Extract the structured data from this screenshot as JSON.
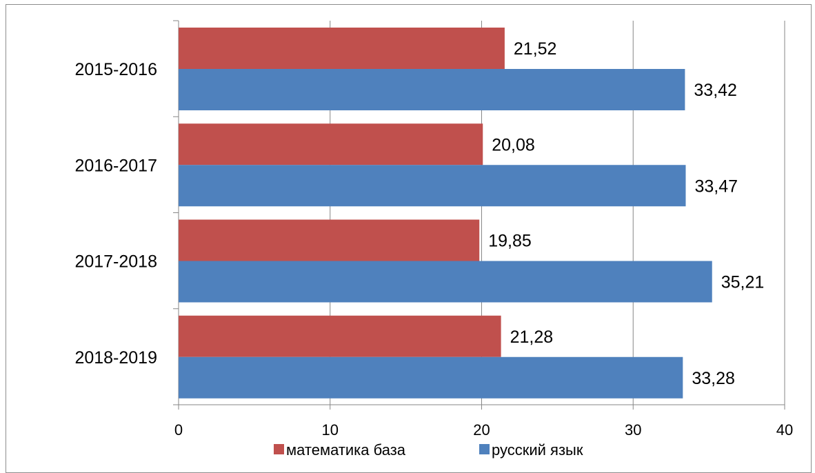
{
  "chart_data": {
    "type": "bar",
    "orientation": "horizontal",
    "categories": [
      "2015-2016",
      "2016-2017",
      "2017-2018",
      "2018-2019"
    ],
    "series": [
      {
        "name": "математика база",
        "color": "#C0504D",
        "values": [
          21.52,
          20.08,
          19.85,
          21.28
        ],
        "labels": [
          "21,52",
          "20,08",
          "19,85",
          "21,28"
        ]
      },
      {
        "name": "русский язык",
        "color": "#4F81BD",
        "values": [
          33.42,
          33.47,
          35.21,
          33.28
        ],
        "labels": [
          "33,42",
          "33,47",
          "35,21",
          "33,28"
        ]
      }
    ],
    "xlim": [
      0,
      40
    ],
    "xticks": [
      0,
      10,
      20,
      30,
      40
    ],
    "grid": true,
    "legend": "bottom"
  }
}
